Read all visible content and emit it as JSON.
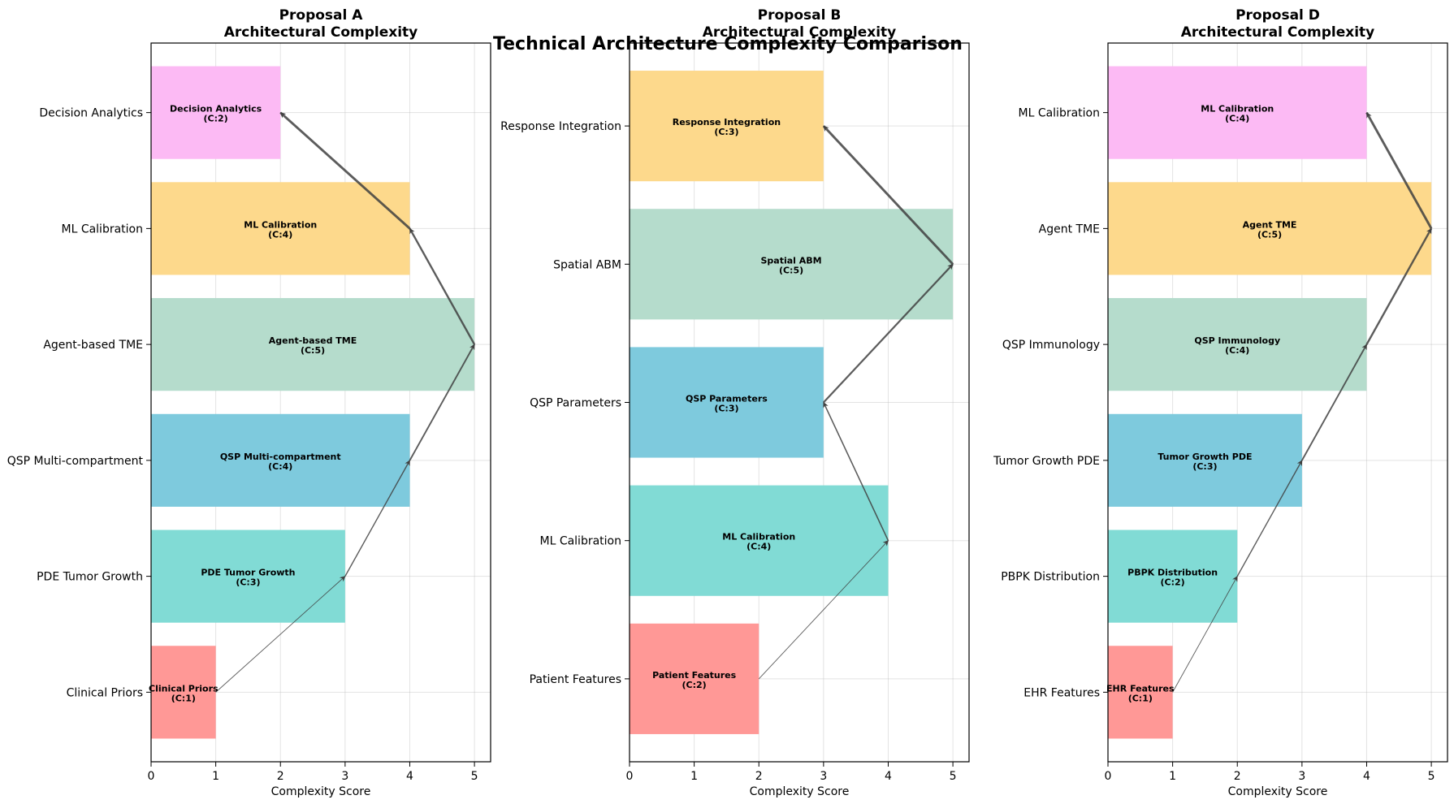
{
  "suptitle": "Technical Architecture Complexity Comparison",
  "chart_data": [
    {
      "type": "bar",
      "orientation": "horizontal",
      "title": "Proposal A",
      "subtitle": "Architectural Complexity",
      "xlabel": "Complexity Score",
      "ylabel": "",
      "xlim": [
        0,
        5.25
      ],
      "xticks": [
        "0",
        "1",
        "2",
        "3",
        "4",
        "5"
      ],
      "grid": true,
      "categories": [
        "Clinical Priors",
        "PDE Tumor Growth",
        "QSP Multi-compartment",
        "Agent-based TME",
        "ML Calibration",
        "Decision Analytics"
      ],
      "values": [
        1,
        3,
        4,
        5,
        4,
        2
      ],
      "bar_labels": [
        "Clinical Priors\n(C:1)",
        "PDE Tumor Growth\n(C:3)",
        "QSP Multi-compartment\n(C:4)",
        "Agent-based TME\n(C:5)",
        "ML Calibration\n(C:4)",
        "Decision Analytics\n(C:2)"
      ],
      "colors": [
        "#ff9896",
        "#81dbd5",
        "#7ecadd",
        "#b5dccc",
        "#fdd98c",
        "#fcbaf4"
      ],
      "flow_arrows": "connect consecutive bar ends"
    },
    {
      "type": "bar",
      "orientation": "horizontal",
      "title": "Proposal B",
      "subtitle": "Architectural Complexity",
      "xlabel": "Complexity Score",
      "ylabel": "",
      "xlim": [
        0,
        5.25
      ],
      "xticks": [
        "0",
        "1",
        "2",
        "3",
        "4",
        "5"
      ],
      "grid": true,
      "categories": [
        "Patient Features",
        "ML Calibration",
        "QSP Parameters",
        "Spatial ABM",
        "Response Integration"
      ],
      "values": [
        2,
        4,
        3,
        5,
        3
      ],
      "bar_labels": [
        "Patient Features\n(C:2)",
        "ML Calibration\n(C:4)",
        "QSP Parameters\n(C:3)",
        "Spatial ABM\n(C:5)",
        "Response Integration\n(C:3)"
      ],
      "colors": [
        "#ff9896",
        "#81dbd5",
        "#7ecadd",
        "#b5dccc",
        "#fdd98c"
      ],
      "flow_arrows": "connect consecutive bar ends"
    },
    {
      "type": "bar",
      "orientation": "horizontal",
      "title": "Proposal D",
      "subtitle": "Architectural Complexity",
      "xlabel": "Complexity Score",
      "ylabel": "",
      "xlim": [
        0,
        5.25
      ],
      "xticks": [
        "0",
        "1",
        "2",
        "3",
        "4",
        "5"
      ],
      "grid": true,
      "categories": [
        "EHR Features",
        "PBPK Distribution",
        "Tumor Growth PDE",
        "QSP Immunology",
        "Agent TME",
        "ML Calibration"
      ],
      "values": [
        1,
        2,
        3,
        4,
        5,
        4
      ],
      "bar_labels": [
        "EHR Features\n(C:1)",
        "PBPK Distribution\n(C:2)",
        "Tumor Growth PDE\n(C:3)",
        "QSP Immunology\n(C:4)",
        "Agent TME\n(C:5)",
        "ML Calibration\n(C:4)"
      ],
      "colors": [
        "#ff9896",
        "#81dbd5",
        "#7ecadd",
        "#b5dccc",
        "#fdd98c",
        "#fcbaf4"
      ],
      "flow_arrows": "connect consecutive bar ends"
    }
  ]
}
